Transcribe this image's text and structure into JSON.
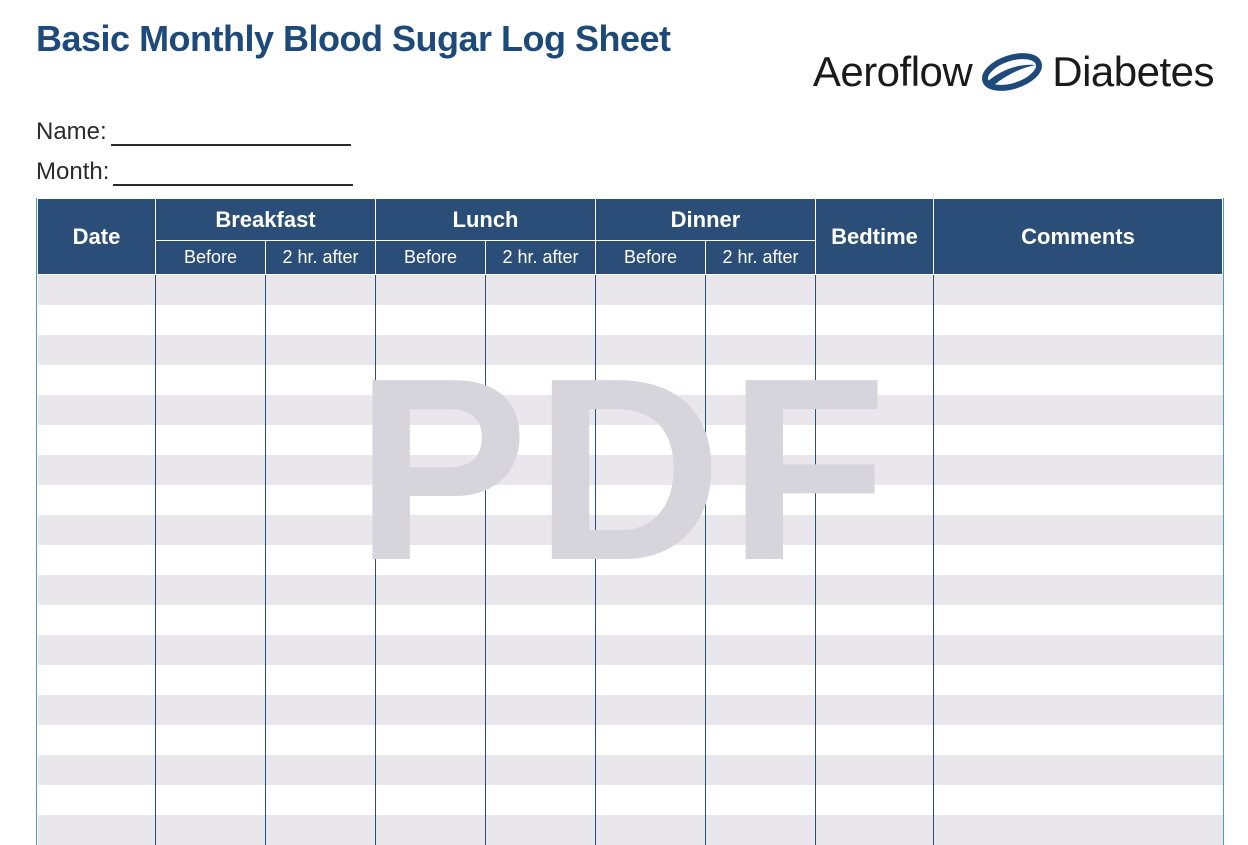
{
  "title": "Basic Monthly Blood Sugar Log Sheet",
  "title_color": "#1e4a7a",
  "logo": {
    "left": "Aeroflow",
    "right": "Diabetes",
    "swoosh_color": "#1e4a7a"
  },
  "fields": {
    "name_label": "Name:",
    "month_label": "Month:"
  },
  "table": {
    "header_bg": "#2a4e78",
    "header_fg": "#ffffff",
    "row_stripe_a": "#e9e6ec",
    "row_stripe_b": "#ffffff",
    "cell_border": "#2a4e78",
    "outer_border": "#50a0b8",
    "columns": {
      "date": "Date",
      "breakfast": "Breakfast",
      "lunch": "Lunch",
      "dinner": "Dinner",
      "bedtime": "Bedtime",
      "comments": "Comments",
      "before": "Before",
      "after": "2 hr. after"
    },
    "col_widths": {
      "date": 118,
      "meal_sub": 110,
      "bedtime": 118,
      "comments_remaining": true
    },
    "row_count": 19
  },
  "watermark": {
    "text": "PDF",
    "color": "#d7d5dc"
  }
}
